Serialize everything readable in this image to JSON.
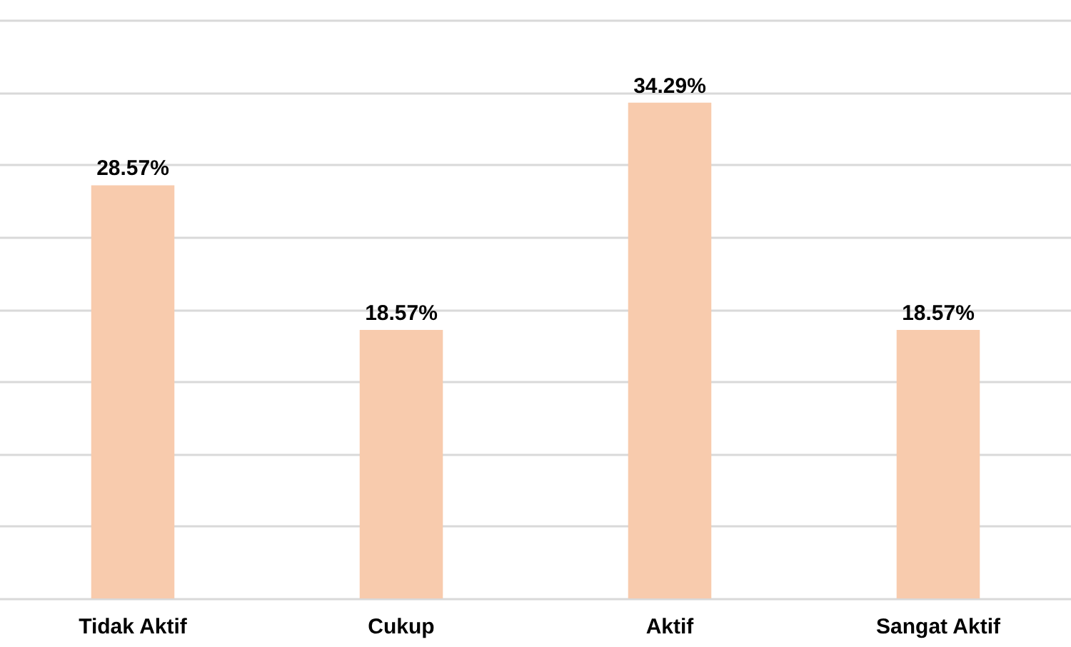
{
  "chart_data": {
    "type": "bar",
    "categories": [
      "Tidak Aktif",
      "Cukup",
      "Aktif",
      "Sangat Aktif"
    ],
    "values": [
      28.57,
      18.57,
      34.29,
      18.57
    ],
    "color": "#f8cbad",
    "value_labels": [
      "28.57%",
      "18.57%",
      "34.29%",
      "18.57%"
    ],
    "ylim": [
      0,
      40
    ],
    "yticks": [
      {
        "value": 0,
        "label": null
      },
      {
        "value": 5,
        "label": null
      },
      {
        "value": 10,
        "label": null
      },
      {
        "value": 15,
        "label": null
      },
      {
        "value": 20,
        "label": null
      },
      {
        "value": 25,
        "label": null
      },
      {
        "value": 30,
        "label": null
      },
      {
        "value": 35,
        "label": null
      },
      {
        "value": 40,
        "label": null
      }
    ],
    "grid": true,
    "tick_labels": "x"
  }
}
